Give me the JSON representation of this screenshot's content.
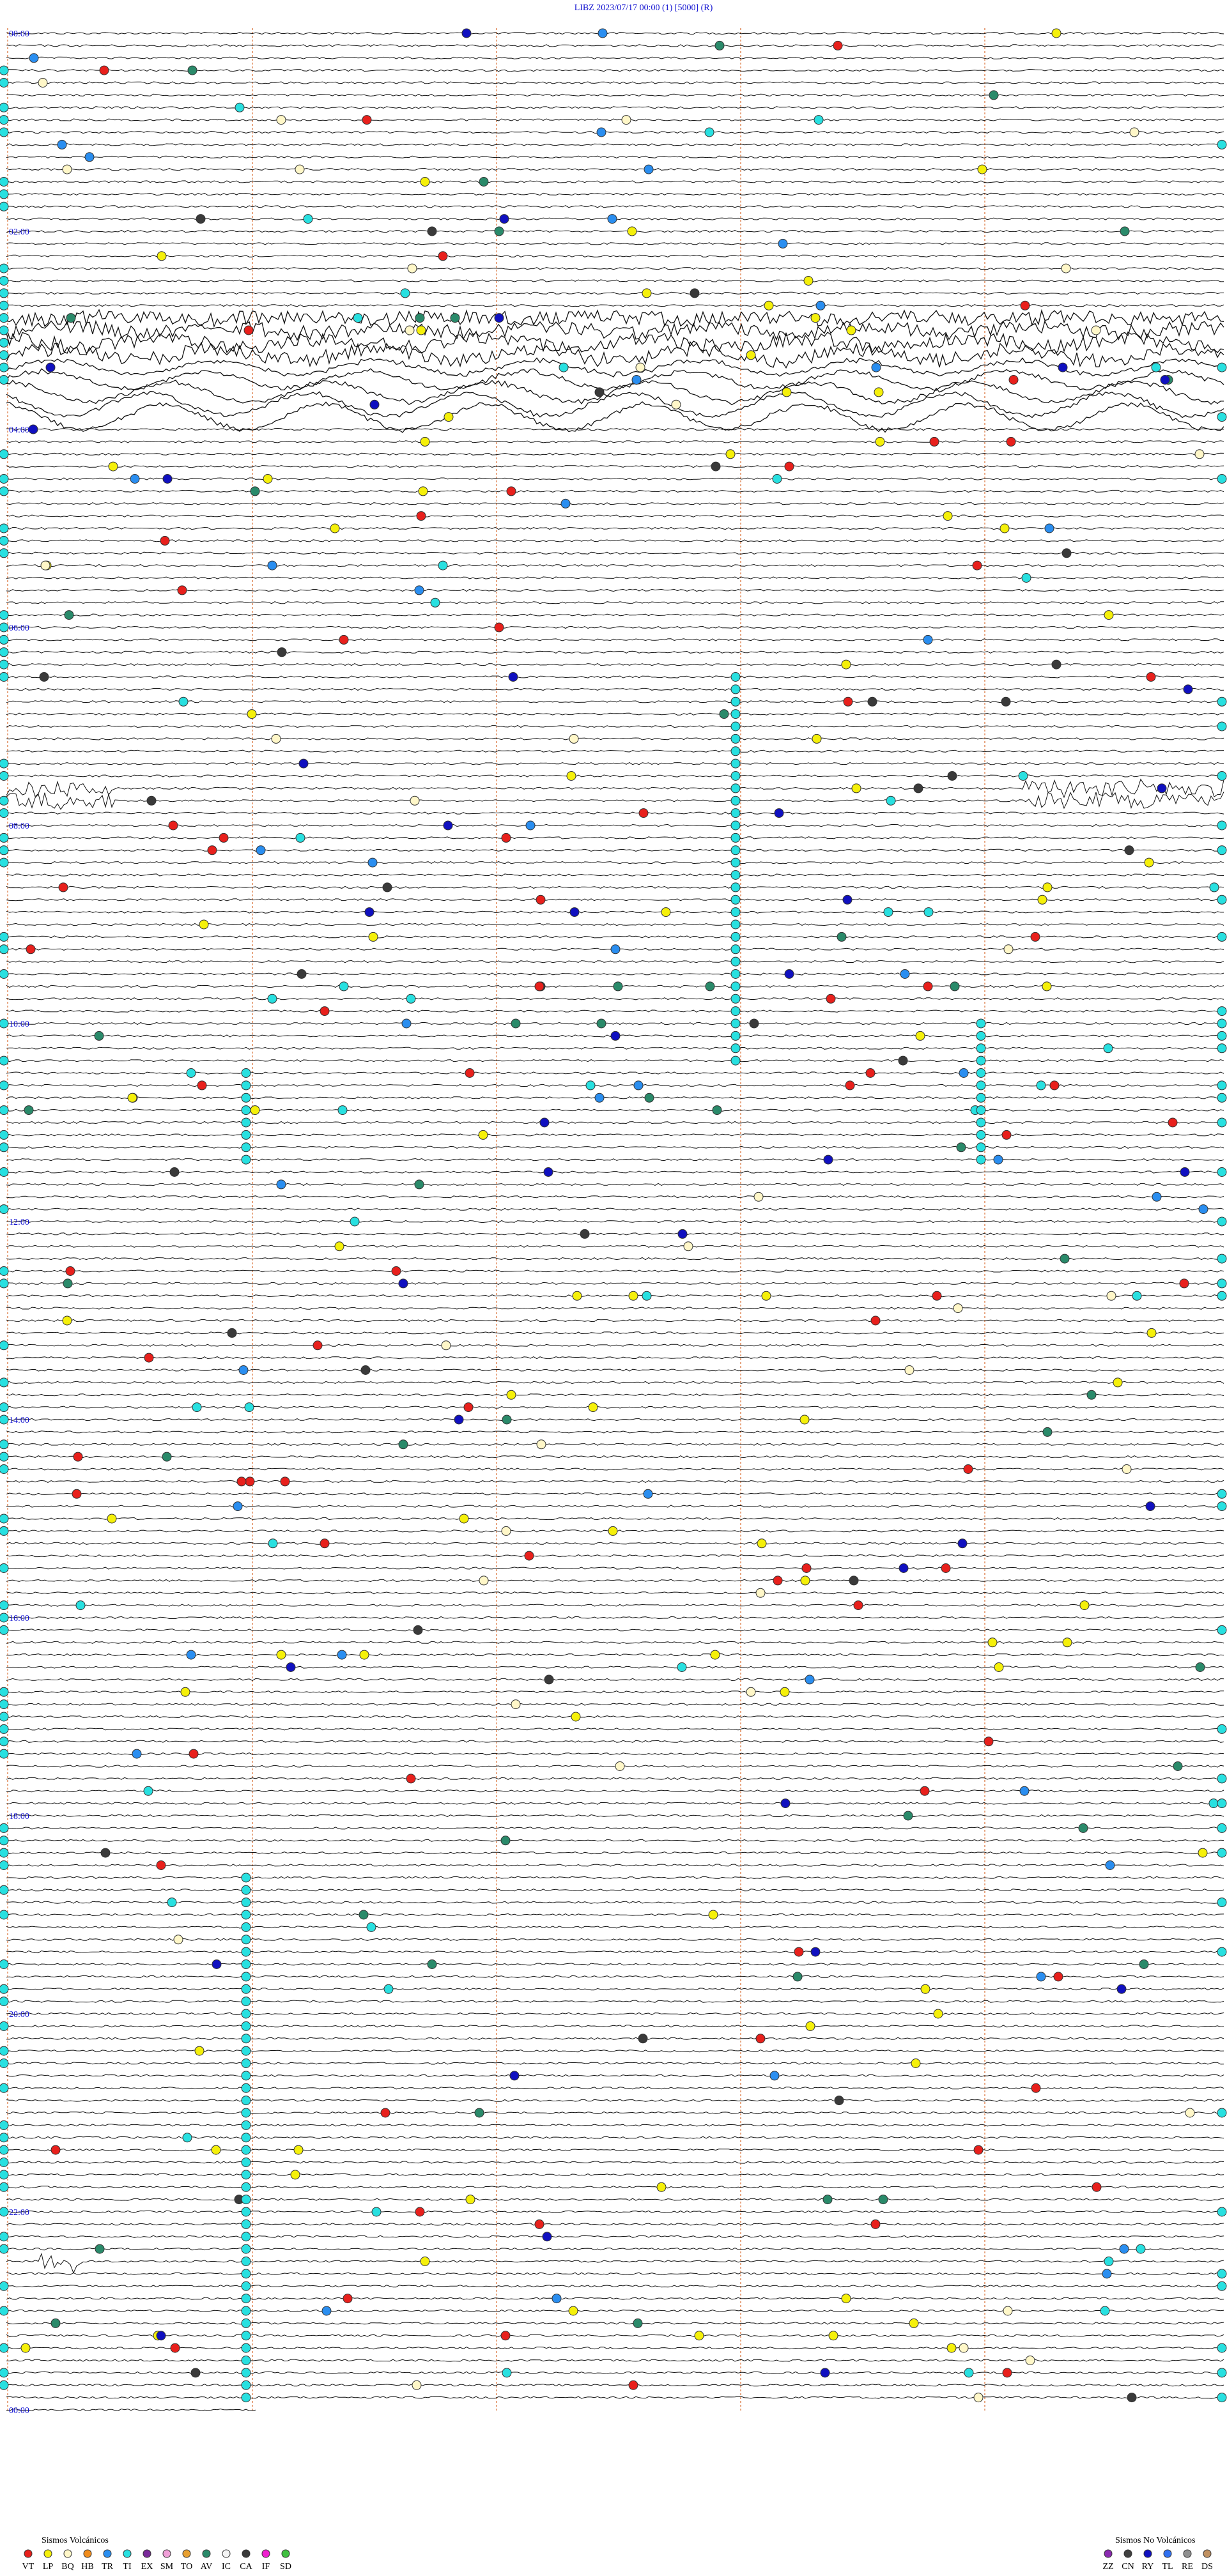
{
  "header": {
    "title": "LIBZ    2023/07/17 00:00     (1)     [5000]   (R)"
  },
  "time_labels": [
    "00:00",
    "02:00",
    "04:00",
    "06:00",
    "08:00",
    "10:00",
    "12:00",
    "14:00",
    "16:00",
    "18:00",
    "20:00",
    "22:00",
    "00:00"
  ],
  "legend": {
    "volcanic": {
      "title": "Sismos Volcánicos",
      "items": [
        {
          "code": "VT",
          "color": "#e8201c"
        },
        {
          "code": "LP",
          "color": "#f5f00a"
        },
        {
          "code": "BQ",
          "color": "#fff7c8"
        },
        {
          "code": "HB",
          "color": "#f08c1c"
        },
        {
          "code": "TR",
          "color": "#2a8ef0"
        },
        {
          "code": "TI",
          "color": "#28e0e0"
        },
        {
          "code": "EX",
          "color": "#7a2a9a"
        },
        {
          "code": "SM",
          "color": "#f0a0d8"
        },
        {
          "code": "TO",
          "color": "#e8a030"
        },
        {
          "code": "AV",
          "color": "#2a8a6a"
        },
        {
          "code": "IC",
          "color": "#f4f4f4"
        },
        {
          "code": "CA",
          "color": "#3a3a3a"
        },
        {
          "code": "IF",
          "color": "#f020d0"
        },
        {
          "code": "SD",
          "color": "#40c040"
        }
      ]
    },
    "non_volcanic": {
      "title": "Sismos No Volcánicos",
      "items": [
        {
          "code": "ZZ",
          "color": "#8a2ab0"
        },
        {
          "code": "CN",
          "color": "#404040"
        },
        {
          "code": "RY",
          "color": "#1010c0"
        },
        {
          "code": "TL",
          "color": "#3070f0"
        },
        {
          "code": "RE",
          "color": "#909090"
        },
        {
          "code": "DS",
          "color": "#c09060"
        }
      ]
    }
  }
}
